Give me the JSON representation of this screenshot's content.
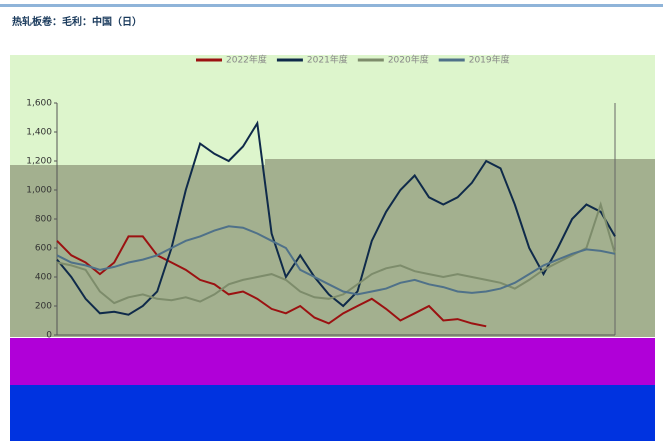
{
  "chart_data": {
    "type": "line",
    "title": "热轧板卷：毛利：中国（日）",
    "categories": [
      null,
      null,
      null,
      null,
      null,
      null,
      null,
      null,
      null,
      null,
      null,
      null,
      null,
      null,
      null,
      null,
      null,
      null,
      null,
      null,
      null,
      null,
      null,
      null,
      null,
      null,
      null,
      null,
      null,
      null,
      null,
      null,
      null,
      null,
      null,
      null,
      null,
      null,
      null,
      null
    ],
    "series": [
      {
        "name": "2022年度",
        "color": "#9b1111",
        "values": [
          650,
          550,
          500,
          420,
          500,
          680,
          680,
          550,
          500,
          450,
          380,
          350,
          280,
          300,
          250,
          180,
          150,
          200,
          120,
          80,
          150,
          200,
          250,
          180,
          100,
          150,
          200,
          100,
          110,
          80,
          60,
          null,
          null,
          null,
          null,
          null,
          null,
          null,
          null,
          null
        ]
      },
      {
        "name": "2021年度",
        "color": "#0f2a4a",
        "values": [
          520,
          400,
          250,
          150,
          160,
          140,
          200,
          300,
          600,
          1000,
          1320,
          1250,
          1200,
          1300,
          1460,
          700,
          400,
          550,
          400,
          280,
          200,
          300,
          650,
          850,
          1000,
          1100,
          950,
          900,
          950,
          1050,
          1200,
          1150,
          900,
          600,
          420,
          600,
          800,
          900,
          850,
          680
        ]
      },
      {
        "name": "2020年度",
        "color": "#7d8c6b",
        "values": [
          500,
          480,
          450,
          300,
          220,
          260,
          280,
          250,
          240,
          260,
          230,
          280,
          350,
          380,
          400,
          420,
          380,
          300,
          260,
          250,
          280,
          350,
          420,
          460,
          480,
          440,
          420,
          400,
          420,
          400,
          380,
          360,
          320,
          380,
          450,
          500,
          550,
          600,
          900,
          560
        ]
      },
      {
        "name": "2019年度",
        "color": "#4f7189",
        "values": [
          550,
          500,
          480,
          450,
          470,
          500,
          520,
          550,
          600,
          650,
          680,
          720,
          750,
          740,
          700,
          650,
          600,
          450,
          400,
          350,
          300,
          280,
          300,
          320,
          360,
          380,
          350,
          330,
          300,
          290,
          300,
          320,
          360,
          420,
          480,
          520,
          560,
          590,
          580,
          560
        ]
      }
    ],
    "ylim": [
      0,
      1600
    ],
    "yticks": [
      0,
      200,
      400,
      600,
      800,
      {
        "value": 1000,
        "label": "1,000"
      },
      {
        "value": 1200,
        "label": "1,200"
      },
      {
        "value": 1400,
        "label": "1,400"
      },
      {
        "value": 1600,
        "label": "1,600"
      }
    ]
  }
}
